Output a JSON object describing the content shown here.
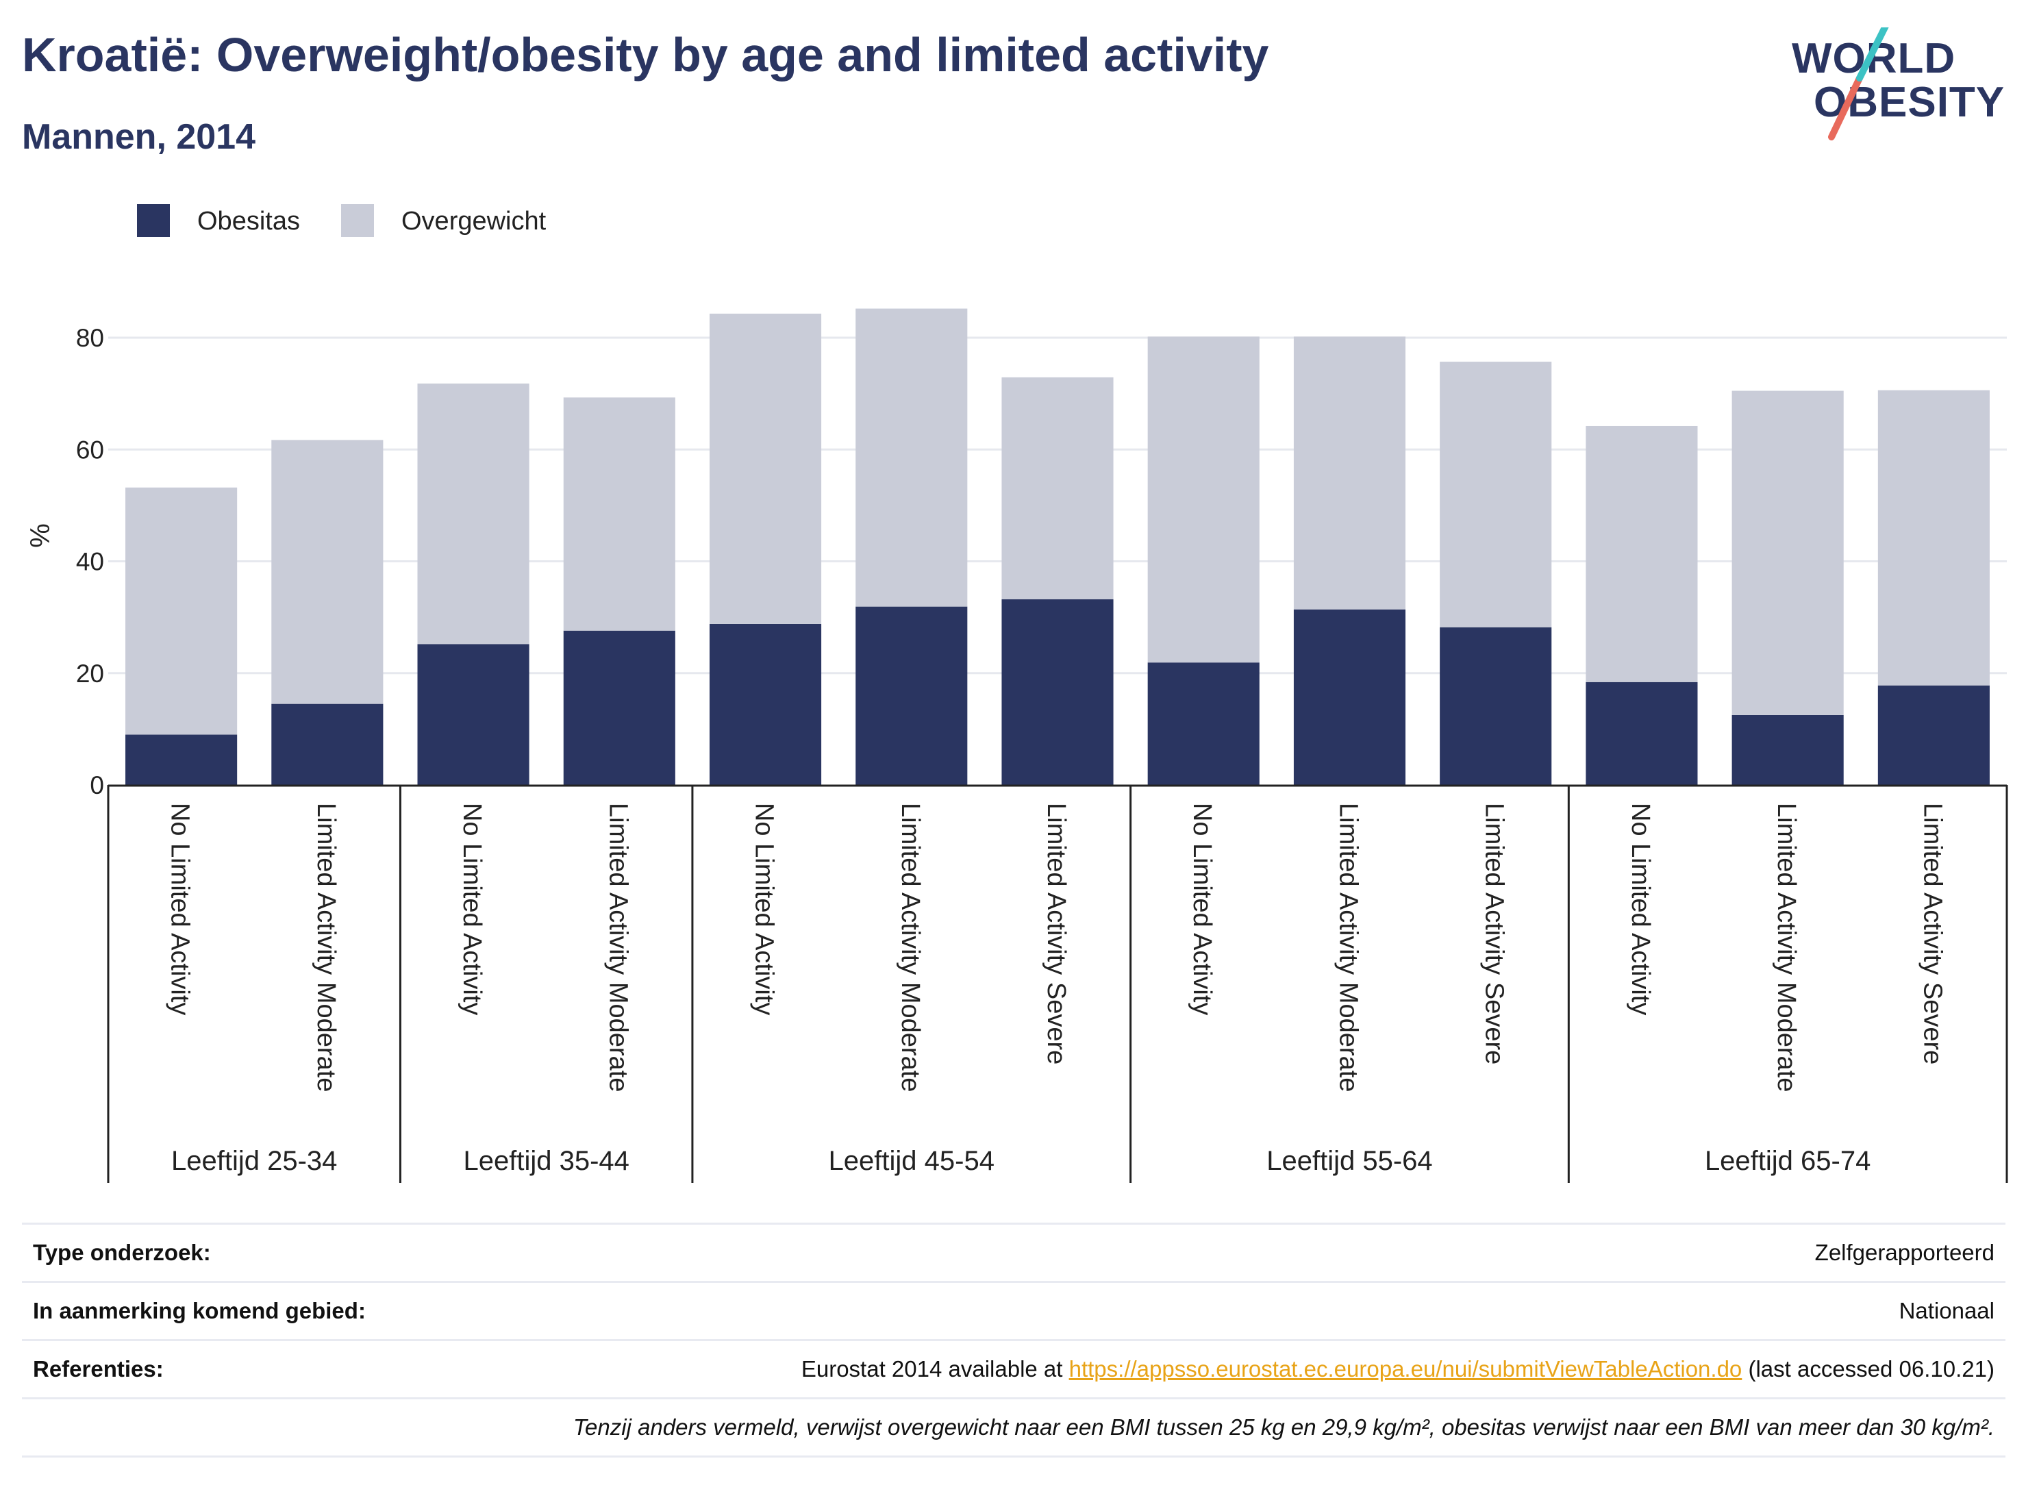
{
  "title": "Kroatië: Overweight/obesity by age and limited activity",
  "subtitle": "Mannen, 2014",
  "logo": {
    "line1": "WORLD",
    "line2": "OBESITY",
    "slash_colors": [
      "#e86a5c",
      "#3cc2c4"
    ]
  },
  "colors": {
    "obesity": "#2a3561",
    "overweight": "#c9ccd8",
    "grid": "#e6e8ee",
    "axis": "#222222",
    "link": "#e8a317"
  },
  "chart_data": {
    "type": "bar",
    "stacked": true,
    "ylabel": "%",
    "ylim": [
      0,
      90
    ],
    "yticks": [
      0,
      20,
      40,
      60,
      80
    ],
    "grid": true,
    "legend_position": "top-left",
    "groups": [
      {
        "label": "Leeftijd 25-34",
        "categories": [
          "No Limited Activity",
          "Limited Activity Moderate"
        ]
      },
      {
        "label": "Leeftijd 35-44",
        "categories": [
          "No Limited Activity",
          "Limited Activity Moderate"
        ]
      },
      {
        "label": "Leeftijd 45-54",
        "categories": [
          "No Limited Activity",
          "Limited Activity Moderate",
          "Limited Activity Severe"
        ]
      },
      {
        "label": "Leeftijd 55-64",
        "categories": [
          "No Limited Activity",
          "Limited Activity Moderate",
          "Limited Activity Severe"
        ]
      },
      {
        "label": "Leeftijd 65-74",
        "categories": [
          "No Limited Activity",
          "Limited Activity Moderate",
          "Limited Activity Severe"
        ]
      }
    ],
    "series": [
      {
        "name": "Obesitas",
        "values": [
          9.0,
          14.5,
          25.2,
          27.6,
          28.8,
          31.9,
          33.2,
          21.9,
          31.4,
          28.2,
          18.4,
          12.5,
          17.8
        ]
      },
      {
        "name": "Overgewicht",
        "values": [
          44.2,
          47.2,
          46.6,
          41.7,
          55.5,
          53.3,
          39.7,
          58.3,
          48.8,
          47.5,
          45.8,
          58.0,
          52.8
        ]
      }
    ]
  },
  "footer": {
    "rows": [
      {
        "label": "Type onderzoek:",
        "value": "Zelfgerapporteerd"
      },
      {
        "label": "In aanmerking komend gebied:",
        "value": "Nationaal"
      }
    ],
    "references": {
      "label": "Referenties:",
      "prefix": "Eurostat 2014 available at ",
      "link": "https://appsso.eurostat.ec.europa.eu/nui/submitViewTableAction.do",
      "suffix": " (last accessed 06.10.21)"
    },
    "note": "Tenzij anders vermeld, verwijst overgewicht naar een BMI tussen 25 kg en 29,9 kg/m², obesitas verwijst naar een BMI van meer dan 30 kg/m²."
  }
}
